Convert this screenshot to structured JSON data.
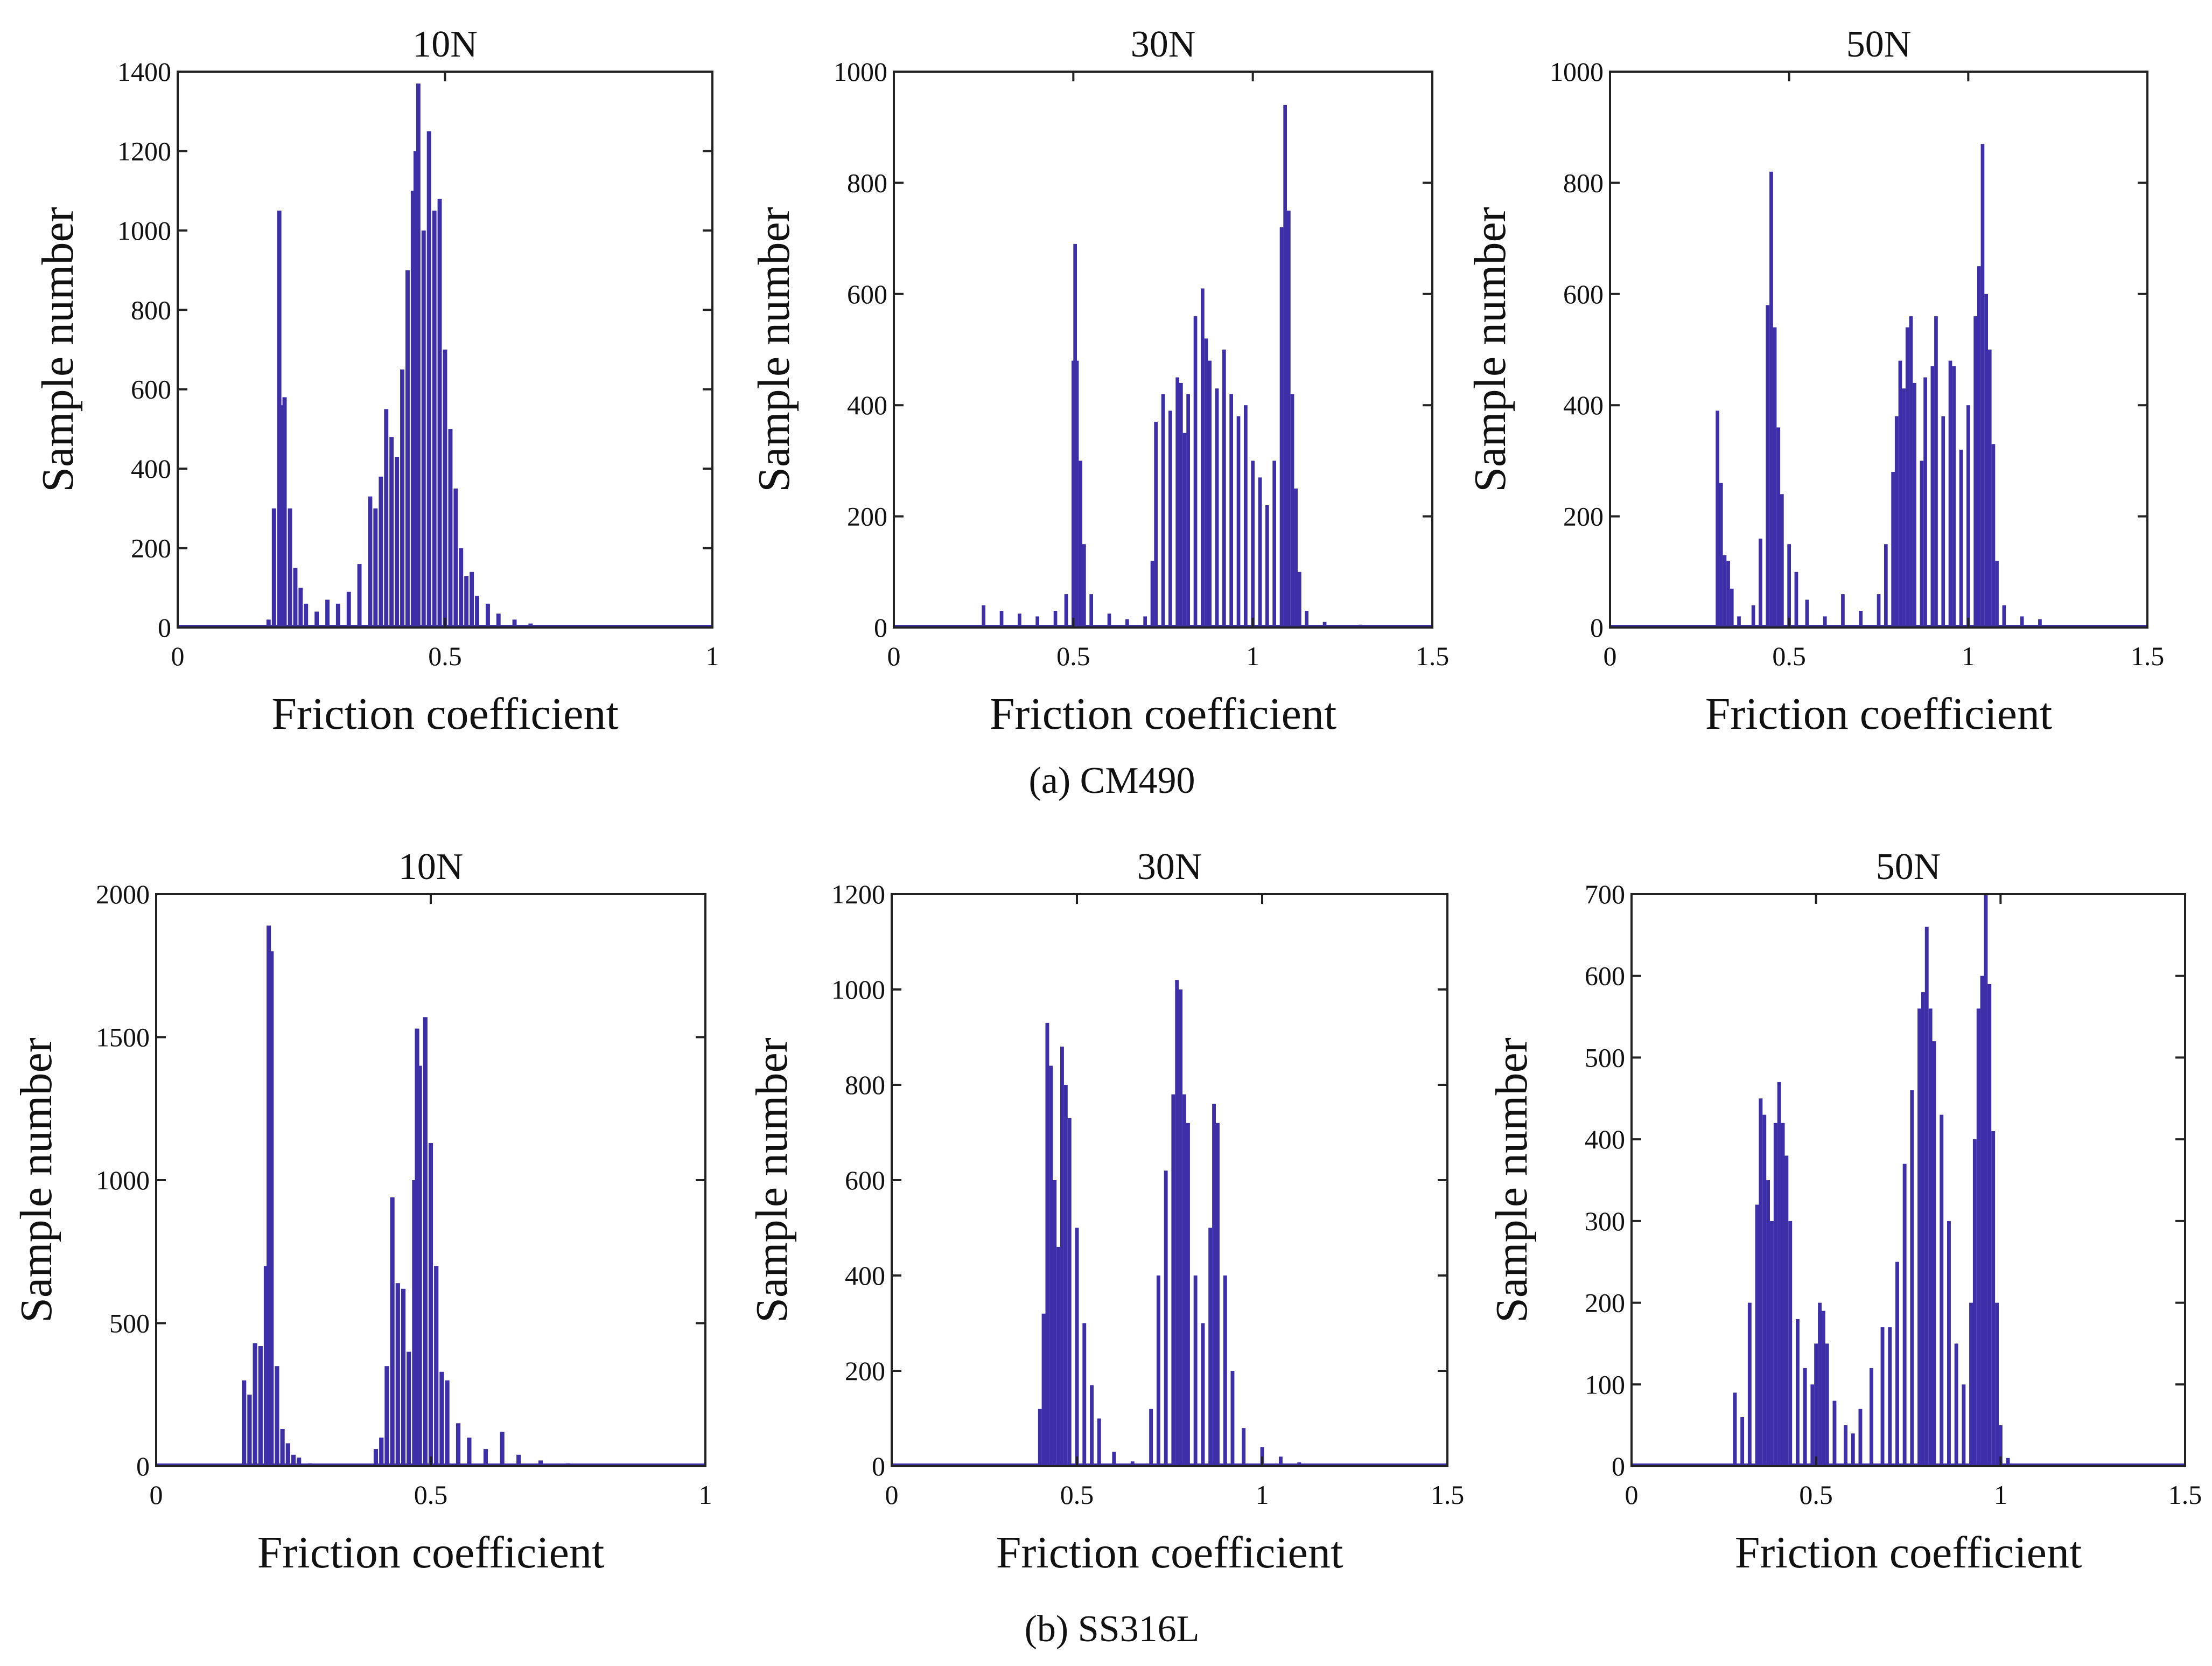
{
  "figure": {
    "captions": [
      "(a) CM490",
      "(b) SS316L"
    ],
    "bar_color": "#3d2fa8"
  },
  "chart_data": [
    {
      "type": "bar",
      "group": "(a) CM490",
      "title": "10N",
      "xlabel": "Friction coefficient",
      "ylabel": "Sample number",
      "xlim": [
        0,
        1
      ],
      "ylim": [
        0,
        1400
      ],
      "xticks": [
        "0",
        "0.5",
        "1"
      ],
      "yticks": [
        "0",
        "200",
        "400",
        "600",
        "800",
        "1000",
        "1200",
        "1400"
      ],
      "bins": [
        [
          0.17,
          20
        ],
        [
          0.18,
          300
        ],
        [
          0.19,
          1050
        ],
        [
          0.195,
          560
        ],
        [
          0.2,
          580
        ],
        [
          0.21,
          300
        ],
        [
          0.22,
          150
        ],
        [
          0.23,
          100
        ],
        [
          0.24,
          60
        ],
        [
          0.26,
          40
        ],
        [
          0.28,
          70
        ],
        [
          0.3,
          60
        ],
        [
          0.32,
          90
        ],
        [
          0.34,
          160
        ],
        [
          0.36,
          330
        ],
        [
          0.37,
          300
        ],
        [
          0.38,
          380
        ],
        [
          0.39,
          550
        ],
        [
          0.4,
          480
        ],
        [
          0.41,
          430
        ],
        [
          0.42,
          650
        ],
        [
          0.43,
          900
        ],
        [
          0.44,
          1100
        ],
        [
          0.445,
          1200
        ],
        [
          0.45,
          1370
        ],
        [
          0.46,
          1000
        ],
        [
          0.47,
          1250
        ],
        [
          0.48,
          1050
        ],
        [
          0.49,
          1080
        ],
        [
          0.5,
          700
        ],
        [
          0.51,
          500
        ],
        [
          0.52,
          350
        ],
        [
          0.53,
          200
        ],
        [
          0.54,
          130
        ],
        [
          0.55,
          140
        ],
        [
          0.56,
          80
        ],
        [
          0.58,
          60
        ],
        [
          0.6,
          35
        ],
        [
          0.63,
          20
        ],
        [
          0.66,
          10
        ],
        [
          0.7,
          5
        ],
        [
          0.8,
          3
        ],
        [
          0.9,
          2
        ]
      ]
    },
    {
      "type": "bar",
      "group": "(a) CM490",
      "title": "30N",
      "xlabel": "Friction coefficient",
      "ylabel": "Sample number",
      "xlim": [
        0,
        1.5
      ],
      "ylim": [
        0,
        1000
      ],
      "xticks": [
        "0",
        "0.5",
        "1",
        "1.5"
      ],
      "yticks": [
        "0",
        "200",
        "400",
        "600",
        "800",
        "1000"
      ],
      "bins": [
        [
          0.25,
          40
        ],
        [
          0.3,
          30
        ],
        [
          0.35,
          25
        ],
        [
          0.4,
          20
        ],
        [
          0.45,
          30
        ],
        [
          0.48,
          60
        ],
        [
          0.5,
          480
        ],
        [
          0.505,
          690
        ],
        [
          0.51,
          480
        ],
        [
          0.52,
          300
        ],
        [
          0.53,
          150
        ],
        [
          0.55,
          60
        ],
        [
          0.6,
          25
        ],
        [
          0.65,
          15
        ],
        [
          0.7,
          20
        ],
        [
          0.72,
          120
        ],
        [
          0.73,
          370
        ],
        [
          0.75,
          420
        ],
        [
          0.77,
          390
        ],
        [
          0.79,
          450
        ],
        [
          0.8,
          440
        ],
        [
          0.81,
          350
        ],
        [
          0.82,
          420
        ],
        [
          0.84,
          560
        ],
        [
          0.86,
          610
        ],
        [
          0.87,
          520
        ],
        [
          0.88,
          480
        ],
        [
          0.9,
          430
        ],
        [
          0.92,
          500
        ],
        [
          0.94,
          420
        ],
        [
          0.96,
          380
        ],
        [
          0.98,
          400
        ],
        [
          1.0,
          300
        ],
        [
          1.02,
          270
        ],
        [
          1.04,
          220
        ],
        [
          1.06,
          300
        ],
        [
          1.08,
          720
        ],
        [
          1.09,
          940
        ],
        [
          1.1,
          750
        ],
        [
          1.11,
          420
        ],
        [
          1.12,
          250
        ],
        [
          1.13,
          100
        ],
        [
          1.15,
          30
        ],
        [
          1.2,
          10
        ],
        [
          1.3,
          5
        ]
      ]
    },
    {
      "type": "bar",
      "group": "(a) CM490",
      "title": "50N",
      "xlabel": "Friction coefficient",
      "ylabel": "Sample number",
      "xlim": [
        0,
        1.5
      ],
      "ylim": [
        0,
        1000
      ],
      "xticks": [
        "0",
        "0.5",
        "1",
        "1.5"
      ],
      "yticks": [
        "0",
        "200",
        "400",
        "600",
        "800",
        "1000"
      ],
      "bins": [
        [
          0.3,
          390
        ],
        [
          0.31,
          260
        ],
        [
          0.32,
          130
        ],
        [
          0.33,
          120
        ],
        [
          0.34,
          70
        ],
        [
          0.36,
          20
        ],
        [
          0.4,
          40
        ],
        [
          0.42,
          160
        ],
        [
          0.44,
          580
        ],
        [
          0.45,
          820
        ],
        [
          0.46,
          540
        ],
        [
          0.47,
          360
        ],
        [
          0.48,
          240
        ],
        [
          0.5,
          150
        ],
        [
          0.52,
          100
        ],
        [
          0.55,
          50
        ],
        [
          0.6,
          20
        ],
        [
          0.65,
          60
        ],
        [
          0.7,
          30
        ],
        [
          0.75,
          60
        ],
        [
          0.77,
          150
        ],
        [
          0.79,
          280
        ],
        [
          0.8,
          380
        ],
        [
          0.81,
          480
        ],
        [
          0.82,
          430
        ],
        [
          0.83,
          540
        ],
        [
          0.84,
          560
        ],
        [
          0.85,
          440
        ],
        [
          0.87,
          300
        ],
        [
          0.88,
          450
        ],
        [
          0.9,
          470
        ],
        [
          0.91,
          560
        ],
        [
          0.93,
          380
        ],
        [
          0.95,
          480
        ],
        [
          0.96,
          470
        ],
        [
          0.98,
          320
        ],
        [
          1.0,
          400
        ],
        [
          1.02,
          560
        ],
        [
          1.03,
          650
        ],
        [
          1.04,
          870
        ],
        [
          1.05,
          600
        ],
        [
          1.06,
          500
        ],
        [
          1.07,
          330
        ],
        [
          1.08,
          120
        ],
        [
          1.1,
          40
        ],
        [
          1.15,
          20
        ],
        [
          1.2,
          15
        ]
      ]
    },
    {
      "type": "bar",
      "group": "(b) SS316L",
      "title": "10N",
      "xlabel": "Friction coefficient",
      "ylabel": "Sample number",
      "xlim": [
        0,
        1
      ],
      "ylim": [
        0,
        2000
      ],
      "xticks": [
        "0",
        "0.5",
        "1"
      ],
      "yticks": [
        "0",
        "500",
        "1000",
        "1500",
        "2000"
      ],
      "bins": [
        [
          0.16,
          300
        ],
        [
          0.17,
          250
        ],
        [
          0.18,
          430
        ],
        [
          0.19,
          420
        ],
        [
          0.2,
          700
        ],
        [
          0.205,
          1890
        ],
        [
          0.21,
          1800
        ],
        [
          0.22,
          350
        ],
        [
          0.23,
          130
        ],
        [
          0.24,
          80
        ],
        [
          0.25,
          40
        ],
        [
          0.26,
          30
        ],
        [
          0.28,
          10
        ],
        [
          0.4,
          60
        ],
        [
          0.41,
          100
        ],
        [
          0.42,
          350
        ],
        [
          0.43,
          940
        ],
        [
          0.44,
          640
        ],
        [
          0.45,
          620
        ],
        [
          0.46,
          400
        ],
        [
          0.47,
          1000
        ],
        [
          0.475,
          1530
        ],
        [
          0.48,
          1400
        ],
        [
          0.49,
          1570
        ],
        [
          0.5,
          1130
        ],
        [
          0.51,
          700
        ],
        [
          0.52,
          330
        ],
        [
          0.53,
          300
        ],
        [
          0.55,
          150
        ],
        [
          0.57,
          100
        ],
        [
          0.6,
          60
        ],
        [
          0.63,
          120
        ],
        [
          0.66,
          40
        ],
        [
          0.7,
          20
        ],
        [
          0.75,
          10
        ]
      ]
    },
    {
      "type": "bar",
      "group": "(b) SS316L",
      "title": "30N",
      "xlabel": "Friction coefficient",
      "ylabel": "Sample number",
      "xlim": [
        0,
        1.5
      ],
      "ylim": [
        0,
        1200
      ],
      "xticks": [
        "0",
        "0.5",
        "1",
        "1.5"
      ],
      "yticks": [
        "0",
        "200",
        "400",
        "600",
        "800",
        "1000",
        "1200"
      ],
      "bins": [
        [
          0.4,
          120
        ],
        [
          0.41,
          320
        ],
        [
          0.42,
          930
        ],
        [
          0.43,
          840
        ],
        [
          0.44,
          600
        ],
        [
          0.45,
          460
        ],
        [
          0.46,
          880
        ],
        [
          0.47,
          800
        ],
        [
          0.48,
          730
        ],
        [
          0.5,
          500
        ],
        [
          0.52,
          300
        ],
        [
          0.54,
          170
        ],
        [
          0.56,
          100
        ],
        [
          0.6,
          30
        ],
        [
          0.65,
          10
        ],
        [
          0.7,
          120
        ],
        [
          0.72,
          400
        ],
        [
          0.74,
          620
        ],
        [
          0.76,
          780
        ],
        [
          0.77,
          1020
        ],
        [
          0.78,
          1000
        ],
        [
          0.79,
          780
        ],
        [
          0.8,
          720
        ],
        [
          0.82,
          400
        ],
        [
          0.84,
          300
        ],
        [
          0.86,
          500
        ],
        [
          0.87,
          760
        ],
        [
          0.88,
          720
        ],
        [
          0.9,
          400
        ],
        [
          0.92,
          200
        ],
        [
          0.95,
          80
        ],
        [
          1.0,
          40
        ],
        [
          1.05,
          20
        ],
        [
          1.1,
          8
        ],
        [
          1.25,
          5
        ]
      ]
    },
    {
      "type": "bar",
      "group": "(b) SS316L",
      "title": "50N",
      "xlabel": "Friction coefficient",
      "ylabel": "Sample number",
      "xlim": [
        0,
        1.5
      ],
      "ylim": [
        0,
        700
      ],
      "xticks": [
        "0",
        "0.5",
        "1",
        "1.5"
      ],
      "yticks": [
        "0",
        "100",
        "200",
        "300",
        "400",
        "500",
        "600",
        "700"
      ],
      "bins": [
        [
          0.28,
          90
        ],
        [
          0.3,
          60
        ],
        [
          0.32,
          200
        ],
        [
          0.34,
          320
        ],
        [
          0.35,
          450
        ],
        [
          0.36,
          430
        ],
        [
          0.37,
          350
        ],
        [
          0.38,
          300
        ],
        [
          0.39,
          420
        ],
        [
          0.4,
          470
        ],
        [
          0.41,
          420
        ],
        [
          0.42,
          380
        ],
        [
          0.43,
          300
        ],
        [
          0.45,
          180
        ],
        [
          0.47,
          120
        ],
        [
          0.49,
          100
        ],
        [
          0.5,
          150
        ],
        [
          0.51,
          200
        ],
        [
          0.52,
          190
        ],
        [
          0.53,
          150
        ],
        [
          0.55,
          80
        ],
        [
          0.58,
          50
        ],
        [
          0.6,
          40
        ],
        [
          0.62,
          70
        ],
        [
          0.65,
          120
        ],
        [
          0.68,
          170
        ],
        [
          0.7,
          170
        ],
        [
          0.72,
          250
        ],
        [
          0.74,
          370
        ],
        [
          0.76,
          460
        ],
        [
          0.78,
          560
        ],
        [
          0.79,
          580
        ],
        [
          0.8,
          660
        ],
        [
          0.81,
          560
        ],
        [
          0.82,
          520
        ],
        [
          0.84,
          430
        ],
        [
          0.86,
          300
        ],
        [
          0.88,
          150
        ],
        [
          0.9,
          100
        ],
        [
          0.92,
          200
        ],
        [
          0.93,
          400
        ],
        [
          0.94,
          560
        ],
        [
          0.95,
          600
        ],
        [
          0.96,
          700
        ],
        [
          0.97,
          590
        ],
        [
          0.98,
          410
        ],
        [
          0.99,
          200
        ],
        [
          1.0,
          50
        ],
        [
          1.02,
          10
        ]
      ]
    }
  ]
}
